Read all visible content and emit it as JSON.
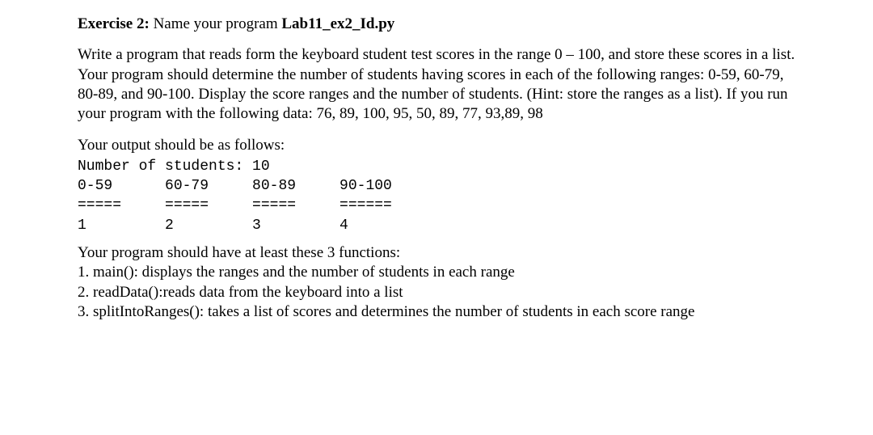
{
  "exercise": {
    "label": "Exercise 2:",
    "name_intro": " Name your program ",
    "program_name": "Lab11_ex2_Id.py"
  },
  "description": "Write a program that reads form the keyboard student test scores in the range 0 – 100, and store these scores in a list. Your program should determine the number of students having scores in each of the following ranges: 0-59, 60-79, 80-89, and 90-100. Display the score ranges and the number of students. (Hint: store the ranges as a list). If you run your program with the following data: 76, 89, 100, 95, 50, 89, 77, 93,89, 98",
  "output_intro": "Your output should be as follows:",
  "output": {
    "line1": "Number of students: 10",
    "line2": "0-59      60-79     80-89     90-100",
    "line3": "=====     =====     =====     ======",
    "line4": "1         2         3         4"
  },
  "functions_intro": "Your program should have at least these 3 functions:",
  "functions": {
    "f1": "1. main(): displays the ranges and the number of students in each range",
    "f2": "2. readData():reads data from the keyboard into a list",
    "f3": "3. splitIntoRanges(): takes a list of scores and determines the number of students in each score range"
  }
}
